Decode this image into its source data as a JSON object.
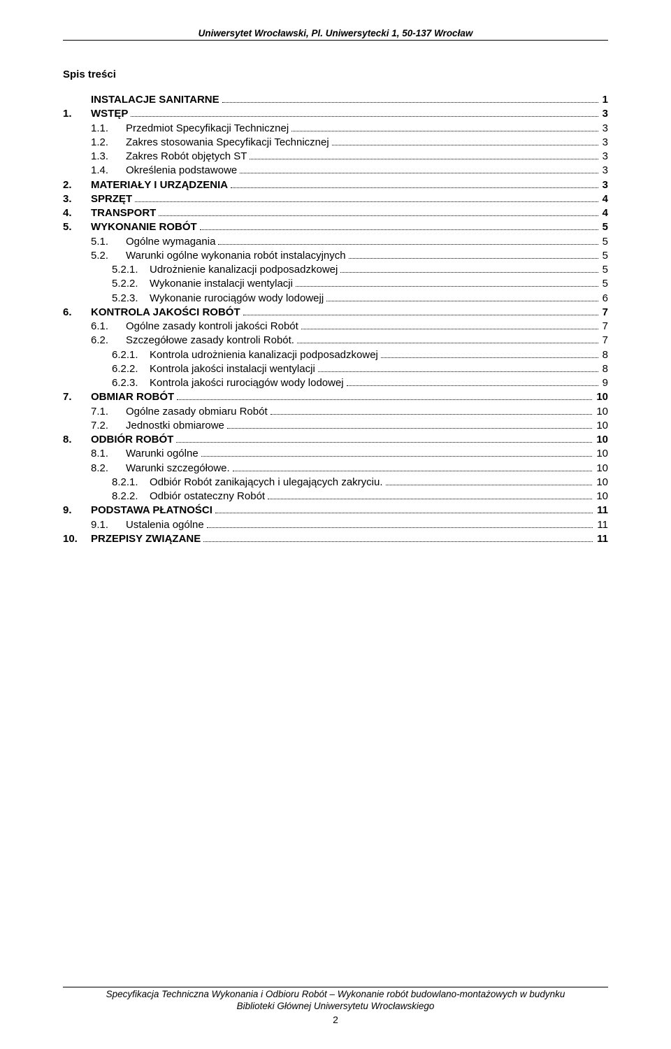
{
  "header": "Uniwersytet Wrocławski, Pl. Uniwersytecki 1, 50-137 Wrocław",
  "toc_title": "Spis treści",
  "entries": [
    {
      "level": 0,
      "num": "",
      "label": "INSTALACJE SANITARNE",
      "page": "1",
      "bold": true
    },
    {
      "level": 0,
      "num": "1.",
      "label": "WSTĘP",
      "page": "3",
      "bold": true
    },
    {
      "level": 1,
      "num": "1.1.",
      "label": "Przedmiot Specyfikacji Technicznej",
      "page": "3",
      "bold": false
    },
    {
      "level": 1,
      "num": "1.2.",
      "label": "Zakres stosowania Specyfikacji Technicznej",
      "page": "3",
      "bold": false
    },
    {
      "level": 1,
      "num": "1.3.",
      "label": "Zakres Robót objętych ST",
      "page": "3",
      "bold": false
    },
    {
      "level": 1,
      "num": "1.4.",
      "label": "Określenia podstawowe",
      "page": "3",
      "bold": false
    },
    {
      "level": 0,
      "num": "2.",
      "label": "MATERIAŁY I URZĄDZENIA",
      "page": "3",
      "bold": true
    },
    {
      "level": 0,
      "num": "3.",
      "label": "SPRZĘT",
      "page": "4",
      "bold": true
    },
    {
      "level": 0,
      "num": "4.",
      "label": "TRANSPORT",
      "page": "4",
      "bold": true
    },
    {
      "level": 0,
      "num": "5.",
      "label": "WYKONANIE ROBÓT",
      "page": "5",
      "bold": true
    },
    {
      "level": 1,
      "num": "5.1.",
      "label": "Ogólne wymagania",
      "page": "5",
      "bold": false
    },
    {
      "level": 1,
      "num": "5.2.",
      "label": "Warunki ogólne wykonania robót instalacyjnych",
      "page": "5",
      "bold": false
    },
    {
      "level": 2,
      "num": "5.2.1.",
      "label": "Udrożnienie kanalizacji podposadzkowej",
      "page": "5",
      "bold": false
    },
    {
      "level": 2,
      "num": "5.2.2.",
      "label": "Wykonanie instalacji wentylacji",
      "page": "5",
      "bold": false
    },
    {
      "level": 2,
      "num": "5.2.3.",
      "label": "Wykonanie rurociągów wody lodowejj",
      "page": "6",
      "bold": false
    },
    {
      "level": 0,
      "num": "6.",
      "label": "KONTROLA JAKOŚCI ROBÓT",
      "page": "7",
      "bold": true
    },
    {
      "level": 1,
      "num": "6.1.",
      "label": "Ogólne zasady kontroli jakości Robót",
      "page": "7",
      "bold": false
    },
    {
      "level": 1,
      "num": "6.2.",
      "label": "Szczegółowe zasady kontroli Robót.",
      "page": "7",
      "bold": false
    },
    {
      "level": 2,
      "num": "6.2.1.",
      "label": "Kontrola udrożnienia kanalizacji podposadzkowej",
      "page": "8",
      "bold": false
    },
    {
      "level": 2,
      "num": "6.2.2.",
      "label": "Kontrola jakości instalacji wentylacji",
      "page": "8",
      "bold": false
    },
    {
      "level": 2,
      "num": "6.2.3.",
      "label": "Kontrola jakości rurociągów wody lodowej",
      "page": "9",
      "bold": false
    },
    {
      "level": 0,
      "num": "7.",
      "label": "OBMIAR ROBÓT",
      "page": "10",
      "bold": true
    },
    {
      "level": 1,
      "num": "7.1.",
      "label": "Ogólne zasady obmiaru Robót",
      "page": "10",
      "bold": false
    },
    {
      "level": 1,
      "num": "7.2.",
      "label": "Jednostki obmiarowe",
      "page": "10",
      "bold": false
    },
    {
      "level": 0,
      "num": "8.",
      "label": "ODBIÓR ROBÓT",
      "page": "10",
      "bold": true
    },
    {
      "level": 1,
      "num": "8.1.",
      "label": "Warunki ogólne",
      "page": "10",
      "bold": false
    },
    {
      "level": 1,
      "num": "8.2.",
      "label": "Warunki szczegółowe.",
      "page": "10",
      "bold": false
    },
    {
      "level": 2,
      "num": "8.2.1.",
      "label": "Odbiór Robót zanikających i ulegających zakryciu. ",
      "page": "10",
      "bold": false
    },
    {
      "level": 2,
      "num": "8.2.2.",
      "label": "Odbiór ostateczny Robót",
      "page": "10",
      "bold": false
    },
    {
      "level": 0,
      "num": "9.",
      "label": "PODSTAWA PŁATNOŚCI",
      "page": "11",
      "bold": true
    },
    {
      "level": 1,
      "num": "9.1.",
      "label": "Ustalenia ogólne",
      "page": "11",
      "bold": false
    },
    {
      "level": 0,
      "num": "10.",
      "label": "PRZEPISY ZWIĄZANE",
      "page": "11",
      "bold": true
    }
  ],
  "footer_line1": "Specyfikacja Techniczna Wykonania i Odbioru Robót – Wykonanie robót budowlano-montażowych w budynku",
  "footer_line2": "Biblioteki Głównej Uniwersytetu Wrocławskiego",
  "page_number": "2"
}
